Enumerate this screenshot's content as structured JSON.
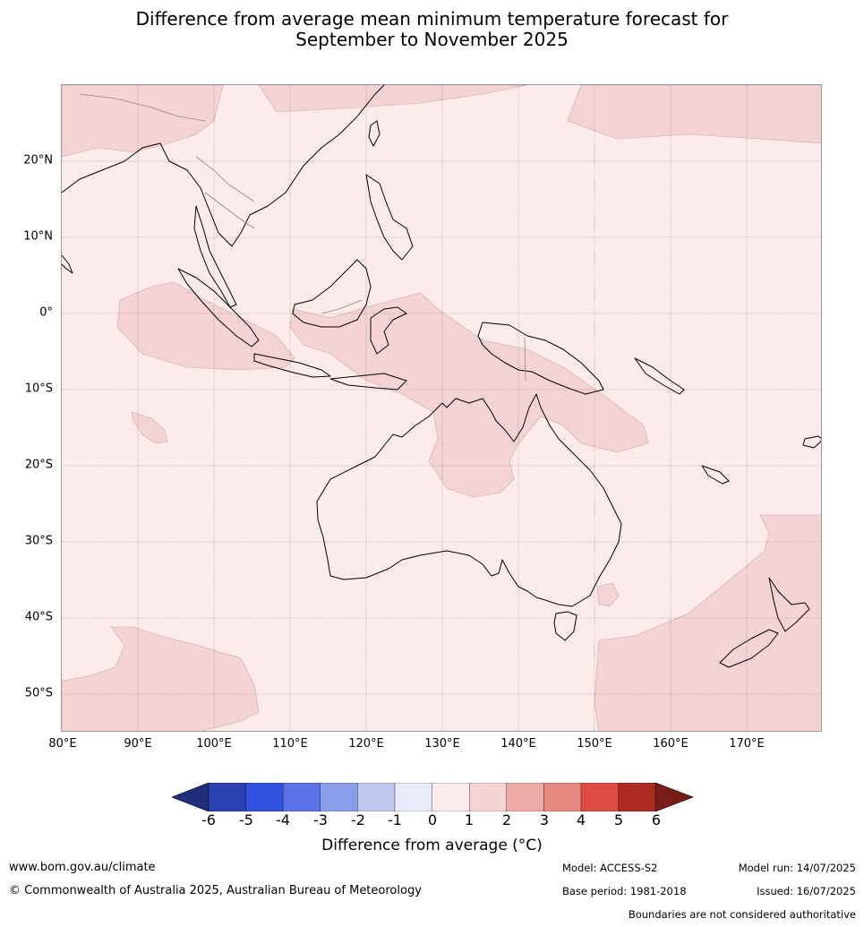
{
  "title_line1": "Difference from average mean minimum temperature forecast for",
  "title_line2": "September to November 2025",
  "lat_labels": [
    "20°N",
    "10°N",
    "0°",
    "10°S",
    "20°S",
    "30°S",
    "40°S",
    "50°S"
  ],
  "lon_labels": [
    "80°E",
    "90°E",
    "100°E",
    "110°E",
    "120°E",
    "130°E",
    "140°E",
    "150°E",
    "160°E",
    "170°E"
  ],
  "colorbar": {
    "ticks": [
      "-6",
      "-5",
      "-4",
      "-3",
      "-2",
      "-1",
      "0",
      "1",
      "2",
      "3",
      "4",
      "5",
      "6"
    ],
    "colors": [
      "#1f2d7a",
      "#2a3fb0",
      "#3050e0",
      "#5a72e6",
      "#8a9de9",
      "#c0c8f2",
      "#e9ebfa",
      "#fcebea",
      "#f5d3d2",
      "#edaba7",
      "#e68780",
      "#dc4c40",
      "#ab2b23",
      "#7a1d18"
    ],
    "title": "Difference from average (°C)"
  },
  "map_colors": {
    "background": "#fcebea",
    "anomaly_1_to_2": "#f5d3d2",
    "coastline": "#000000",
    "borders": "#888888",
    "grid": "#555555"
  },
  "footer": {
    "website": "www.bom.gov.au/climate",
    "copyright": "© Commonwealth of Australia 2025, Australian Bureau of Meteorology",
    "model": "Model: ACCESS-S2",
    "base_period": "Base period: 1981-2018",
    "model_run": "Model run: 14/07/2025",
    "issued": "Issued: 16/07/2025",
    "disclaimer": "Boundaries are not considered authoritative"
  }
}
